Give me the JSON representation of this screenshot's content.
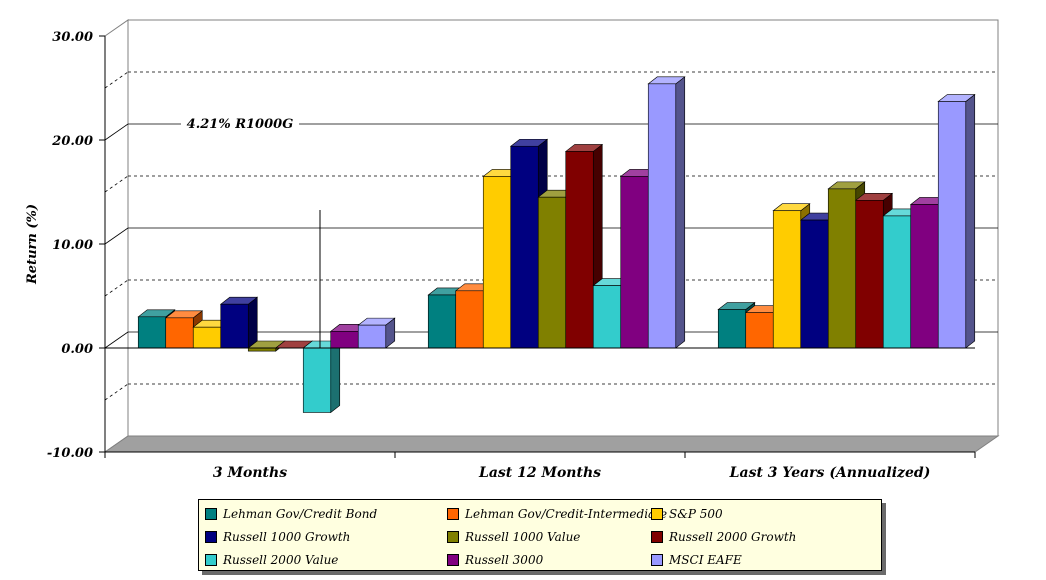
{
  "chart_data": {
    "type": "bar",
    "ylabel": "Return (%)",
    "ylim": [
      -10,
      30
    ],
    "yticks": [
      "30.00",
      "20.00",
      "10.00",
      "0.00",
      "-10.00"
    ],
    "grid": true,
    "legend_position": "bottom",
    "categories": [
      "3 Months",
      "Last 12 Months",
      "Last 3 Years (Annualized)"
    ],
    "annotation": "4.21% R1000G",
    "series": [
      {
        "name": "Lehman Gov/Credit Bond",
        "color": "#008080",
        "values": [
          3.0,
          5.1,
          3.7
        ]
      },
      {
        "name": "Lehman Gov/Credit-Intermediate",
        "color": "#ff6600",
        "values": [
          2.9,
          5.5,
          3.4
        ]
      },
      {
        "name": "S&P 500",
        "color": "#ffcc00",
        "values": [
          2.0,
          16.5,
          13.2
        ]
      },
      {
        "name": "Russell 1000 Growth",
        "color": "#000080",
        "values": [
          4.21,
          19.4,
          12.3
        ]
      },
      {
        "name": "Russell 1000 Value",
        "color": "#808000",
        "values": [
          -0.3,
          14.5,
          15.3
        ]
      },
      {
        "name": "Russell 2000 Growth",
        "color": "#800000",
        "values": [
          0.0,
          18.9,
          14.2
        ]
      },
      {
        "name": "Russell 2000 Value",
        "color": "#33cccc",
        "values": [
          -6.2,
          6.0,
          12.7
        ]
      },
      {
        "name": "Russell 3000",
        "color": "#800080",
        "values": [
          1.6,
          16.5,
          13.8
        ]
      },
      {
        "name": "MSCI EAFE",
        "color": "#9999ff",
        "values": [
          2.2,
          25.4,
          23.7
        ]
      }
    ]
  }
}
